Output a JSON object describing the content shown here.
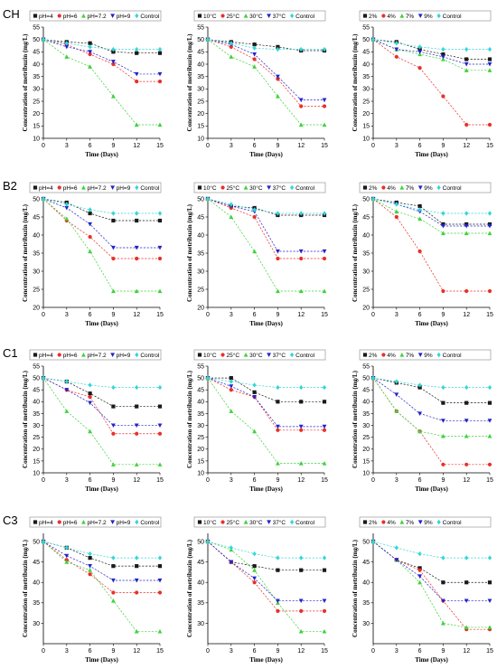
{
  "colors": {
    "black": "#1a1a1a",
    "red": "#e8302a",
    "green": "#3fd23a",
    "blue": "#2323c8",
    "cyan": "#34d6d6"
  },
  "chart_data": [
    {
      "row_label": "CH",
      "type": "line",
      "xlabel": "Time (Days)",
      "ylabel": "Concentration of metribuzin (mg/L)",
      "x": [
        0,
        3,
        6,
        9,
        12,
        15
      ],
      "xlim": [
        0,
        15
      ],
      "ylim": [
        10,
        55
      ],
      "yticks": [
        10,
        15,
        20,
        25,
        30,
        35,
        40,
        45,
        50,
        55
      ],
      "series": [
        {
          "name": "pH=4",
          "color": "black",
          "values": [
            50,
            49,
            48.5,
            45,
            44.5,
            44.5
          ]
        },
        {
          "name": "pH=6",
          "color": "red",
          "values": [
            50,
            48,
            44,
            40,
            33,
            33
          ]
        },
        {
          "name": "pH=7.2",
          "color": "green",
          "values": [
            50,
            43,
            39,
            27,
            15.5,
            15.5
          ]
        },
        {
          "name": "pH=9",
          "color": "blue",
          "values": [
            50,
            47,
            45,
            41,
            36,
            36
          ]
        },
        {
          "name": "Control",
          "color": "cyan",
          "values": [
            50,
            48.5,
            47,
            46,
            46,
            46
          ]
        }
      ]
    },
    {
      "row_label": "",
      "type": "line",
      "xlabel": "Time (Days)",
      "ylabel": "Concentration of metribuzin (mg/L)",
      "x": [
        0,
        3,
        6,
        9,
        12,
        15
      ],
      "xlim": [
        0,
        15
      ],
      "ylim": [
        10,
        55
      ],
      "yticks": [
        10,
        15,
        20,
        25,
        30,
        35,
        40,
        45,
        50,
        55
      ],
      "series": [
        {
          "name": "10°C",
          "color": "black",
          "values": [
            50,
            49,
            48,
            47,
            45.5,
            45.5
          ]
        },
        {
          "name": "25°C",
          "color": "red",
          "values": [
            50,
            47,
            42,
            34,
            23,
            23
          ]
        },
        {
          "name": "30°C",
          "color": "green",
          "values": [
            50,
            43,
            39,
            27,
            15.5,
            15.5
          ]
        },
        {
          "name": "37°C",
          "color": "blue",
          "values": [
            50,
            48,
            44,
            35,
            25.5,
            25.5
          ]
        },
        {
          "name": "Control",
          "color": "cyan",
          "values": [
            50,
            48.5,
            46.5,
            46,
            46,
            46
          ]
        }
      ]
    },
    {
      "row_label": "",
      "type": "line",
      "xlabel": "Time (Days)",
      "ylabel": "Concentration of metribuzin (mg/L)",
      "x": [
        0,
        3,
        6,
        9,
        12,
        15
      ],
      "xlim": [
        0,
        15
      ],
      "ylim": [
        10,
        55
      ],
      "yticks": [
        10,
        15,
        20,
        25,
        30,
        35,
        40,
        45,
        50,
        55
      ],
      "series": [
        {
          "name": "2%",
          "color": "black",
          "values": [
            50,
            49,
            46,
            44,
            42,
            42
          ]
        },
        {
          "name": "4%",
          "color": "red",
          "values": [
            50,
            43,
            38.5,
            27,
            15.5,
            15.5
          ]
        },
        {
          "name": "7%",
          "color": "green",
          "values": [
            50,
            46,
            44,
            42,
            37.5,
            37.5
          ]
        },
        {
          "name": "9%",
          "color": "blue",
          "values": [
            50,
            46,
            45,
            43,
            40,
            40
          ]
        },
        {
          "name": "Control",
          "color": "cyan",
          "values": [
            50,
            48.5,
            47,
            46,
            46,
            46
          ]
        }
      ]
    },
    {
      "row_label": "B2",
      "type": "line",
      "xlabel": "Time (Days)",
      "ylabel": "Concentration of metribuzin (mg/L)",
      "x": [
        0,
        3,
        6,
        9,
        12,
        15
      ],
      "xlim": [
        0,
        15
      ],
      "ylim": [
        20,
        50
      ],
      "yticks": [
        20,
        25,
        30,
        35,
        40,
        45,
        50
      ],
      "series": [
        {
          "name": "pH=4",
          "color": "black",
          "values": [
            50,
            49,
            46,
            44,
            44,
            44
          ]
        },
        {
          "name": "pH=6",
          "color": "red",
          "values": [
            50,
            44,
            39.5,
            33.5,
            33.5,
            33.5
          ]
        },
        {
          "name": "pH=7.2",
          "color": "green",
          "values": [
            50,
            44.5,
            35.5,
            24.5,
            24.5,
            24.5
          ]
        },
        {
          "name": "pH=9",
          "color": "blue",
          "values": [
            50,
            47.5,
            43,
            36.5,
            36.5,
            36.5
          ]
        },
        {
          "name": "Control",
          "color": "cyan",
          "values": [
            50,
            48.5,
            47,
            46,
            46,
            46
          ]
        }
      ]
    },
    {
      "row_label": "",
      "type": "line",
      "xlabel": "Time (Days)",
      "ylabel": "Concentration of metribuzin (mg/L)",
      "x": [
        0,
        3,
        6,
        9,
        12,
        15
      ],
      "xlim": [
        0,
        15
      ],
      "ylim": [
        20,
        50
      ],
      "yticks": [
        20,
        25,
        30,
        35,
        40,
        45,
        50
      ],
      "series": [
        {
          "name": "10°C",
          "color": "black",
          "values": [
            50,
            48,
            47.5,
            45.5,
            45.5,
            45.5
          ]
        },
        {
          "name": "25°C",
          "color": "red",
          "values": [
            50,
            47.5,
            45,
            33.5,
            33.5,
            33.5
          ]
        },
        {
          "name": "30°C",
          "color": "green",
          "values": [
            50,
            45,
            35.5,
            24.5,
            24.5,
            24.5
          ]
        },
        {
          "name": "37°C",
          "color": "blue",
          "values": [
            50,
            48,
            46.5,
            35.5,
            35.5,
            35.5
          ]
        },
        {
          "name": "Control",
          "color": "cyan",
          "values": [
            50,
            48.5,
            47,
            46,
            46,
            46
          ]
        }
      ]
    },
    {
      "row_label": "",
      "type": "line",
      "xlabel": "Time (Days)",
      "ylabel": "Concentration of metribuzin (mg/L)",
      "x": [
        0,
        3,
        6,
        9,
        12,
        15
      ],
      "xlim": [
        0,
        15
      ],
      "ylim": [
        20,
        50
      ],
      "yticks": [
        20,
        25,
        30,
        35,
        40,
        45,
        50
      ],
      "series": [
        {
          "name": "2%",
          "color": "black",
          "values": [
            50,
            49,
            48,
            43,
            43,
            43
          ]
        },
        {
          "name": "4%",
          "color": "red",
          "values": [
            50,
            45,
            35.5,
            24.5,
            24.5,
            24.5
          ]
        },
        {
          "name": "7%",
          "color": "green",
          "values": [
            50,
            46.5,
            44.5,
            40.5,
            40.5,
            40.5
          ]
        },
        {
          "name": "9%",
          "color": "blue",
          "values": [
            50,
            48.5,
            46.5,
            42.5,
            42.5,
            42.5
          ]
        },
        {
          "name": "Control",
          "color": "cyan",
          "values": [
            50,
            48.5,
            47,
            46,
            46,
            46
          ]
        }
      ]
    },
    {
      "row_label": "C1",
      "type": "line",
      "xlabel": "Time (Days)",
      "ylabel": "Concentration of metribuzin (mg/L)",
      "x": [
        0,
        3,
        6,
        9,
        12,
        15
      ],
      "xlim": [
        0,
        15
      ],
      "ylim": [
        10,
        55
      ],
      "yticks": [
        10,
        15,
        20,
        25,
        30,
        35,
        40,
        45,
        50,
        55
      ],
      "series": [
        {
          "name": "pH=4",
          "color": "black",
          "values": [
            50,
            48.5,
            43.5,
            38,
            38,
            38
          ]
        },
        {
          "name": "pH=6",
          "color": "red",
          "values": [
            50,
            45,
            42,
            26.5,
            26.5,
            26.5
          ]
        },
        {
          "name": "pH=7.2",
          "color": "green",
          "values": [
            50,
            36,
            27.5,
            13.5,
            13.5,
            13.5
          ]
        },
        {
          "name": "pH=9",
          "color": "blue",
          "values": [
            50,
            45,
            39.5,
            30,
            30,
            30
          ]
        },
        {
          "name": "Control",
          "color": "cyan",
          "values": [
            50,
            48.5,
            47,
            46,
            46,
            46
          ]
        }
      ]
    },
    {
      "row_label": "",
      "type": "line",
      "xlabel": "Time (Days)",
      "ylabel": "Concentration of metribuzin (mg/L)",
      "x": [
        0,
        3,
        6,
        9,
        12,
        15
      ],
      "xlim": [
        0,
        15
      ],
      "ylim": [
        10,
        55
      ],
      "yticks": [
        10,
        15,
        20,
        25,
        30,
        35,
        40,
        45,
        50,
        55
      ],
      "series": [
        {
          "name": "10°C",
          "color": "black",
          "values": [
            50,
            50,
            44,
            40,
            40,
            40
          ]
        },
        {
          "name": "25°C",
          "color": "red",
          "values": [
            50,
            45,
            42,
            28,
            28,
            28
          ]
        },
        {
          "name": "30°C",
          "color": "green",
          "values": [
            50,
            36,
            27.5,
            14,
            14,
            14
          ]
        },
        {
          "name": "37°C",
          "color": "blue",
          "values": [
            50,
            46.5,
            42,
            29.5,
            29.5,
            29.5
          ]
        },
        {
          "name": "Control",
          "color": "cyan",
          "values": [
            50,
            48.5,
            47,
            46,
            46,
            46
          ]
        }
      ]
    },
    {
      "row_label": "",
      "type": "line",
      "xlabel": "Time (Days)",
      "ylabel": "Concentration of metribuzin (mg/L)",
      "x": [
        0,
        3,
        6,
        9,
        12,
        15
      ],
      "xlim": [
        0,
        15
      ],
      "ylim": [
        10,
        55
      ],
      "yticks": [
        10,
        15,
        20,
        25,
        30,
        35,
        40,
        45,
        50,
        55
      ],
      "series": [
        {
          "name": "2%",
          "color": "black",
          "values": [
            50,
            48,
            46,
            39.5,
            39.5,
            39.5
          ]
        },
        {
          "name": "4%",
          "color": "red",
          "values": [
            50,
            36,
            27.5,
            13.5,
            13.5,
            13.5
          ]
        },
        {
          "name": "7%",
          "color": "green",
          "values": [
            50,
            36,
            27.5,
            25.5,
            25.5,
            25.5
          ]
        },
        {
          "name": "9%",
          "color": "blue",
          "values": [
            50,
            43,
            35,
            32,
            32,
            32
          ]
        },
        {
          "name": "Control",
          "color": "cyan",
          "values": [
            50,
            48.5,
            47,
            46,
            46,
            46
          ]
        }
      ]
    },
    {
      "row_label": "C3",
      "type": "line",
      "xlabel": "Time (Days)",
      "ylabel": "Concentration of metribuzin (mg/L)",
      "x": [
        0,
        3,
        6,
        9,
        12,
        15
      ],
      "xlim": [
        0,
        15
      ],
      "ylim": [
        25,
        52
      ],
      "yticks": [
        30,
        35,
        40,
        45,
        50
      ],
      "series": [
        {
          "name": "pH=4",
          "color": "black",
          "values": [
            50,
            48.5,
            46,
            44,
            44,
            44
          ]
        },
        {
          "name": "pH=6",
          "color": "red",
          "values": [
            50,
            45.5,
            42,
            37.5,
            37.5,
            37.5
          ]
        },
        {
          "name": "pH=7.2",
          "color": "green",
          "values": [
            50,
            45,
            43,
            35.5,
            28,
            28
          ]
        },
        {
          "name": "pH=9",
          "color": "blue",
          "values": [
            50,
            46.5,
            44,
            40.5,
            40.5,
            40.5
          ]
        },
        {
          "name": "Control",
          "color": "cyan",
          "values": [
            50,
            48.5,
            47,
            46,
            46,
            46
          ]
        }
      ]
    },
    {
      "row_label": "",
      "type": "line",
      "xlabel": "Time (Days)",
      "ylabel": "Concentration of metribuzin (mg/L)",
      "x": [
        0,
        3,
        6,
        9,
        12,
        15
      ],
      "xlim": [
        0,
        15
      ],
      "ylim": [
        25,
        52
      ],
      "yticks": [
        30,
        35,
        40,
        45,
        50
      ],
      "series": [
        {
          "name": "10°C",
          "color": "black",
          "values": [
            50,
            45,
            44,
            43,
            43,
            43
          ]
        },
        {
          "name": "25°C",
          "color": "red",
          "values": [
            50,
            45,
            40,
            33,
            33,
            33
          ]
        },
        {
          "name": "30°C",
          "color": "green",
          "values": [
            50,
            48,
            43,
            35,
            28,
            28
          ]
        },
        {
          "name": "37°C",
          "color": "blue",
          "values": [
            50,
            45,
            41,
            35.5,
            35.5,
            35.5
          ]
        },
        {
          "name": "Control",
          "color": "cyan",
          "values": [
            50,
            48.5,
            47,
            46,
            46,
            46
          ]
        }
      ]
    },
    {
      "row_label": "",
      "type": "line",
      "xlabel": "Time (Days)",
      "ylabel": "Concentration of metribuzin (mg/L)",
      "x": [
        0,
        3,
        6,
        9,
        12,
        15
      ],
      "xlim": [
        0,
        15
      ],
      "ylim": [
        25,
        52
      ],
      "yticks": [
        30,
        35,
        40,
        45,
        50
      ],
      "series": [
        {
          "name": "2%",
          "color": "black",
          "values": [
            50,
            45.5,
            43.5,
            40,
            40,
            40
          ]
        },
        {
          "name": "4%",
          "color": "red",
          "values": [
            50,
            45.5,
            43,
            35.5,
            28.5,
            28.5
          ]
        },
        {
          "name": "7%",
          "color": "green",
          "values": [
            50,
            45.5,
            40,
            30,
            29,
            29
          ]
        },
        {
          "name": "9%",
          "color": "blue",
          "values": [
            50,
            45.5,
            41.5,
            35.5,
            35.5,
            35.5
          ]
        },
        {
          "name": "Control",
          "color": "cyan",
          "values": [
            50,
            48.5,
            47,
            46,
            46,
            46
          ]
        }
      ]
    }
  ]
}
